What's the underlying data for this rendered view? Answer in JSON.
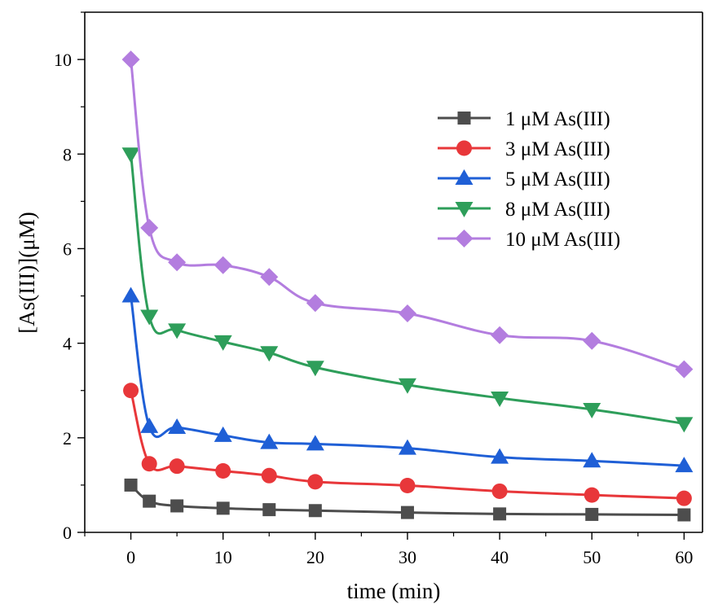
{
  "chart_data": {
    "type": "line",
    "xlabel": "time (min)",
    "ylabel": "[As(III)](μM)",
    "xlim": [
      -5,
      62
    ],
    "ylim": [
      0,
      11
    ],
    "x_ticks": [
      0,
      10,
      20,
      30,
      40,
      50,
      60
    ],
    "y_ticks": [
      0,
      2,
      4,
      6,
      8,
      10
    ],
    "grid": false,
    "legend_position": "top-right",
    "x": [
      0,
      2,
      5,
      10,
      15,
      20,
      30,
      40,
      50,
      60
    ],
    "series": [
      {
        "name": "1 μM As(III)",
        "marker": "square",
        "color": "#4d4d4d",
        "values": [
          1.0,
          0.66,
          0.56,
          0.51,
          0.48,
          0.46,
          0.42,
          0.39,
          0.38,
          0.37
        ]
      },
      {
        "name": "3 μM As(III)",
        "marker": "circle",
        "color": "#e8373a",
        "values": [
          3.0,
          1.45,
          1.4,
          1.3,
          1.2,
          1.07,
          0.99,
          0.87,
          0.79,
          0.72
        ]
      },
      {
        "name": "5 μM As(III)",
        "marker": "triangle-up",
        "color": "#1f5fd6",
        "values": [
          5.0,
          2.24,
          2.22,
          2.05,
          1.9,
          1.87,
          1.78,
          1.59,
          1.51,
          1.41
        ]
      },
      {
        "name": "8 μM As(III)",
        "marker": "triangle-down",
        "color": "#2e9e5a",
        "values": [
          8.0,
          4.57,
          4.28,
          4.03,
          3.8,
          3.49,
          3.12,
          2.84,
          2.6,
          2.3
        ]
      },
      {
        "name": "10 μM As(III)",
        "marker": "diamond",
        "color": "#b37ddf",
        "values": [
          10.0,
          6.44,
          5.71,
          5.65,
          5.4,
          4.85,
          4.63,
          4.17,
          4.05,
          3.45
        ]
      }
    ]
  }
}
